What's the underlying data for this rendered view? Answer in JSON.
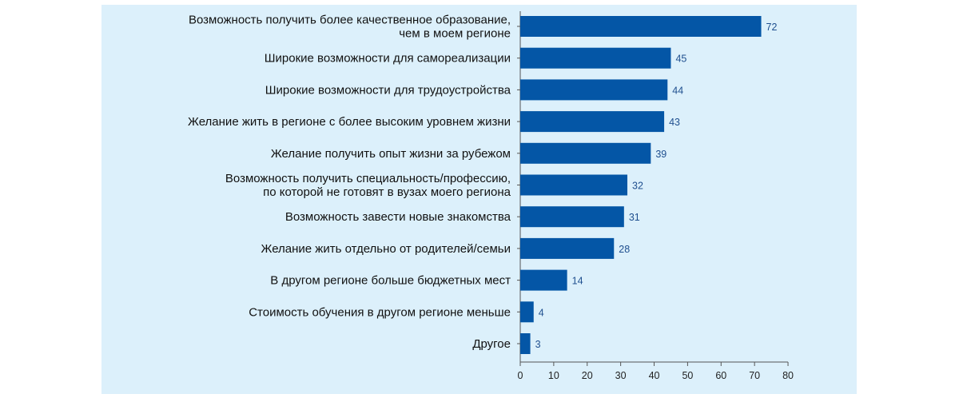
{
  "chart_data": {
    "type": "bar",
    "orientation": "horizontal",
    "categories": [
      [
        "Возможность получить более качественное образование,",
        "чем в моем регионе"
      ],
      [
        "Широкие возможности для самореализации"
      ],
      [
        "Широкие возможности для трудоустройства"
      ],
      [
        "Желание жить в регионе с более высоким уровнем жизни"
      ],
      [
        "Желание получить опыт жизни за рубежом"
      ],
      [
        "Возможность получить специальность/профессию,",
        "по которой не готовят в вузах моего региона"
      ],
      [
        "Возможность завести новые знакомства"
      ],
      [
        "Желание жить отдельно от родителей/семьи"
      ],
      [
        "В другом регионе больше бюджетных мест"
      ],
      [
        "Стоимость обучения в другом регионе меньше"
      ],
      [
        "Другое"
      ]
    ],
    "values": [
      72,
      45,
      44,
      43,
      39,
      32,
      31,
      28,
      14,
      4,
      3
    ],
    "title": "",
    "xlabel": "",
    "ylabel": "",
    "xlim": [
      0,
      80
    ],
    "xticks": [
      0,
      10,
      20,
      30,
      40,
      50,
      60,
      70,
      80
    ],
    "grid": false,
    "bar_color": "#0456a6",
    "background_color": "#dcf0fb",
    "value_label_color": "#1f4f8f"
  }
}
